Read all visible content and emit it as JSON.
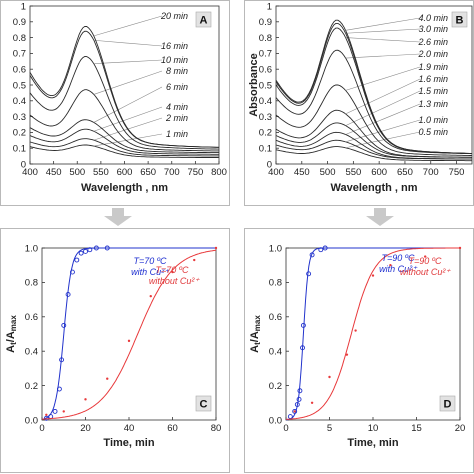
{
  "colors": {
    "blue": "#2233cc",
    "red": "#e8393b",
    "panel_border": "#b9b9b9",
    "arrow": "#c9c9c9"
  },
  "chart_data": [
    {
      "id": "A",
      "type": "line",
      "badge": "A",
      "xlabel": "Wavelength , nm",
      "ylabel": "",
      "xlim": [
        400,
        800
      ],
      "ylim": [
        0,
        1.0
      ],
      "xticks": [
        "400",
        "450",
        "500",
        "550",
        "600",
        "650",
        "700",
        "750",
        "800"
      ],
      "yticks": [
        "0",
        "0.1",
        "0.2",
        "0.3",
        "0.4",
        "0.5",
        "0.6",
        "0.7",
        "0.8",
        "0.9",
        "1"
      ],
      "series": [
        {
          "name": "1 min",
          "peak": 0.12,
          "base": 0.11,
          "tail": 0.04
        },
        {
          "name": "2 min",
          "peak": 0.16,
          "base": 0.14,
          "tail": 0.05
        },
        {
          "name": "4 min",
          "peak": 0.22,
          "base": 0.18,
          "tail": 0.06
        },
        {
          "name": "6 min",
          "peak": 0.28,
          "base": 0.23,
          "tail": 0.07
        },
        {
          "name": "8 min",
          "peak": 0.47,
          "base": 0.31,
          "tail": 0.08
        },
        {
          "name": "10 min",
          "peak": 0.68,
          "base": 0.45,
          "tail": 0.09
        },
        {
          "name": "16 min",
          "peak": 0.84,
          "base": 0.56,
          "tail": 0.1
        },
        {
          "name": "20 min",
          "peak": 0.87,
          "base": 0.58,
          "tail": 0.1
        }
      ]
    },
    {
      "id": "B",
      "type": "line",
      "badge": "B",
      "xlabel": "Wavelength , nm",
      "ylabel": "Absorbance",
      "xlim": [
        400,
        780
      ],
      "ylim": [
        0,
        1.0
      ],
      "xticks": [
        "400",
        "450",
        "500",
        "550",
        "600",
        "650",
        "700",
        "750"
      ],
      "yticks": [
        "0",
        "0.1",
        "0.2",
        "0.3",
        "0.4",
        "0.5",
        "0.6",
        "0.7",
        "0.8",
        "0.9",
        "1"
      ],
      "series": [
        {
          "name": "0.5 min",
          "peak": 0.11,
          "base": 0.09,
          "tail": 0.02
        },
        {
          "name": "1.0 min",
          "peak": 0.15,
          "base": 0.12,
          "tail": 0.03
        },
        {
          "name": "1.3 min",
          "peak": 0.2,
          "base": 0.15,
          "tail": 0.03
        },
        {
          "name": "1.5 min",
          "peak": 0.26,
          "base": 0.18,
          "tail": 0.04
        },
        {
          "name": "1.6 min",
          "peak": 0.34,
          "base": 0.22,
          "tail": 0.04
        },
        {
          "name": "1.9 min",
          "peak": 0.5,
          "base": 0.31,
          "tail": 0.05
        },
        {
          "name": "2.0 min",
          "peak": 0.72,
          "base": 0.42,
          "tail": 0.06
        },
        {
          "name": "2.6 min",
          "peak": 0.86,
          "base": 0.5,
          "tail": 0.06
        },
        {
          "name": "3.0 min",
          "peak": 0.89,
          "base": 0.52,
          "tail": 0.06
        },
        {
          "name": "4.0 min",
          "peak": 0.91,
          "base": 0.53,
          "tail": 0.06
        }
      ]
    },
    {
      "id": "C",
      "type": "scatter",
      "badge": "C",
      "xlabel": "Time, min",
      "ylabel_main": "A",
      "ylabel_sub1": "t",
      "ylabel_sep": "/A",
      "ylabel_sub2": "max",
      "xlim": [
        0,
        80
      ],
      "ylim": [
        0,
        1.0
      ],
      "xticks": [
        "0",
        "20",
        "40",
        "60",
        "80"
      ],
      "yticks": [
        "0.0",
        "0.2",
        "0.4",
        "0.6",
        "0.8",
        "1.0"
      ],
      "annotations": [
        {
          "text": "T=70 ºC",
          "color": "blue"
        },
        {
          "text": "with Cu²⁺",
          "color": "blue"
        },
        {
          "text": "T=70 ºC",
          "color": "red"
        },
        {
          "text": "without Cu²⁺",
          "color": "red"
        }
      ],
      "series": [
        {
          "name": "with Cu²⁺",
          "color": "blue",
          "t50": 10,
          "k": 0.55,
          "x": [
            2,
            4,
            6,
            8,
            9,
            10,
            12,
            14,
            16,
            18,
            20,
            22,
            25,
            30
          ],
          "y": [
            0.01,
            0.02,
            0.05,
            0.18,
            0.35,
            0.55,
            0.73,
            0.86,
            0.93,
            0.97,
            0.98,
            0.99,
            1.0,
            1.0
          ]
        },
        {
          "name": "without Cu²⁺",
          "color": "red",
          "t50": 44,
          "k": 0.12,
          "x": [
            2,
            10,
            20,
            30,
            40,
            50,
            60,
            70,
            80
          ],
          "y": [
            0.03,
            0.05,
            0.12,
            0.24,
            0.46,
            0.72,
            0.86,
            0.93,
            1.0
          ]
        }
      ]
    },
    {
      "id": "D",
      "type": "scatter",
      "badge": "D",
      "xlabel": "Time, min",
      "ylabel_main": "A",
      "ylabel_sub1": "t",
      "ylabel_sep": "/A",
      "ylabel_sub2": "max",
      "xlim": [
        0,
        20
      ],
      "ylim": [
        0,
        1.0
      ],
      "xticks": [
        "0",
        "5",
        "10",
        "15",
        "20"
      ],
      "yticks": [
        "0.0",
        "0.2",
        "0.4",
        "0.6",
        "0.8",
        "1.0"
      ],
      "annotations": [
        {
          "text": "T=90 ºC",
          "color": "blue"
        },
        {
          "text": "with Cu²⁺",
          "color": "blue"
        },
        {
          "text": "T=90 ºC",
          "color": "red"
        },
        {
          "text": "without Cu²⁺",
          "color": "red"
        }
      ],
      "series": [
        {
          "name": "with Cu²⁺",
          "color": "blue",
          "t50": 2.0,
          "k": 3.4,
          "x": [
            0.5,
            1.0,
            1.3,
            1.5,
            1.6,
            1.9,
            2.0,
            2.6,
            3.0,
            4.0,
            4.5
          ],
          "y": [
            0.02,
            0.05,
            0.09,
            0.12,
            0.17,
            0.42,
            0.55,
            0.85,
            0.96,
            0.99,
            1.0
          ]
        },
        {
          "name": "without Cu²⁺",
          "color": "red",
          "t50": 7.5,
          "k": 0.75,
          "x": [
            1,
            3,
            5,
            7,
            8,
            10,
            12,
            16,
            20
          ],
          "y": [
            0.05,
            0.1,
            0.25,
            0.38,
            0.52,
            0.84,
            0.9,
            0.95,
            1.0
          ]
        }
      ]
    }
  ]
}
